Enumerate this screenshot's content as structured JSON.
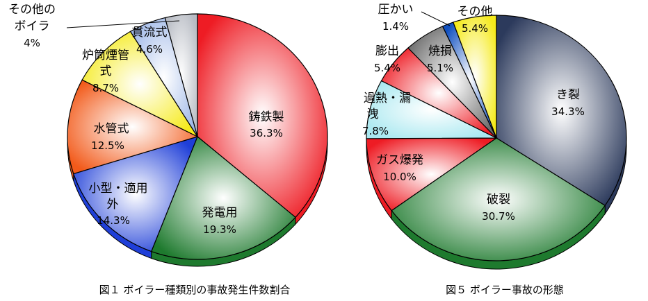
{
  "colors": {
    "red": "#ee1c24",
    "green": "#1e7a2e",
    "blue": "#1f3fd8",
    "orange": "#f25a1a",
    "yellow": "#f5ea1a",
    "lightblue": "#9fb8e8",
    "gray": "#b8bcc4",
    "navy": "#2c3a5c",
    "cyan": "#a8e8f0",
    "darkgray": "#6a6a6a",
    "royal": "#1050c0"
  },
  "chart_data": [
    {
      "type": "pie",
      "caption": "図１ ボイラー種類別の事故発生件数割合",
      "slices": [
        {
          "label": "鋳鉄製",
          "value": 36.3,
          "value_text": "36.3%",
          "color": "red"
        },
        {
          "label": "発電用",
          "value": 19.3,
          "value_text": "19.3%",
          "color": "green"
        },
        {
          "label": "小型・適用外",
          "label_lines": [
            "小型・適用",
            "外"
          ],
          "value": 14.3,
          "value_text": "14.3%",
          "color": "blue"
        },
        {
          "label": "水管式",
          "value": 12.5,
          "value_text": "12.5%",
          "color": "orange"
        },
        {
          "label": "炉筒煙管式",
          "label_lines": [
            "炉筒煙管",
            "式"
          ],
          "value": 8.7,
          "value_text": "8.7%",
          "color": "yellow"
        },
        {
          "label": "貫流式",
          "value": 4.6,
          "value_text": "4.6%",
          "color": "lightblue"
        },
        {
          "label": "その他のボイラ",
          "label_lines": [
            "その他の",
            "ボイラ"
          ],
          "value": 4,
          "value_text": "4%",
          "color": "gray"
        }
      ]
    },
    {
      "type": "pie",
      "caption": "図５ ボイラー事故の形態",
      "slices": [
        {
          "label": "き裂",
          "value": 34.3,
          "value_text": "34.3%",
          "color": "navy"
        },
        {
          "label": "破裂",
          "value": 30.7,
          "value_text": "30.7%",
          "color": "green"
        },
        {
          "label": "ガス爆発",
          "value": 10.0,
          "value_text": "10.0%",
          "color": "red"
        },
        {
          "label": "過熱・漏洩",
          "label_lines": [
            "過熱・漏",
            "洩"
          ],
          "value": 7.8,
          "value_text": "7.8%",
          "color": "cyan"
        },
        {
          "label": "膨出",
          "value": 5.4,
          "value_text": "5.4%",
          "color": "red"
        },
        {
          "label": "焼損",
          "value": 5.1,
          "value_text": "5.1%",
          "color": "darkgray"
        },
        {
          "label": "圧かい",
          "value": 1.4,
          "value_text": "1.4%",
          "color": "royal"
        },
        {
          "label": "その他",
          "value": 5.4,
          "value_text": "5.4%",
          "color": "yellow"
        }
      ]
    }
  ]
}
